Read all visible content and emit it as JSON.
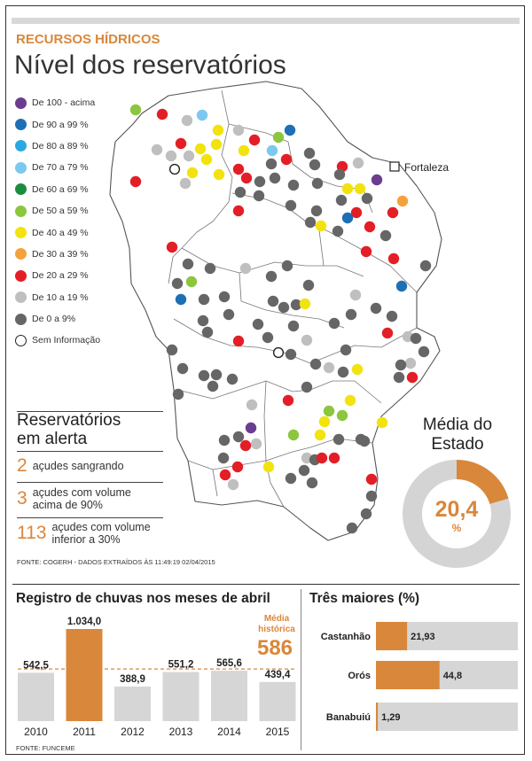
{
  "header": {
    "section": "RECURSOS HÍDRICOS",
    "title": "Nível dos reservatórios"
  },
  "legend": [
    {
      "label": "De 100 - acima",
      "color": "#6a3d8f"
    },
    {
      "label": "De 90 a 99 %",
      "color": "#1f6fb5"
    },
    {
      "label": "De 80 a 89 %",
      "color": "#2aa9e0"
    },
    {
      "label": "De 70 a 79 %",
      "color": "#7cc8ee"
    },
    {
      "label": "De 60 a 69 %",
      "color": "#1e8c3f"
    },
    {
      "label": "De 50 a 59 %",
      "color": "#8cc63f"
    },
    {
      "label": "De 40 a 49 %",
      "color": "#f2e30f"
    },
    {
      "label": "De 30 a 39 %",
      "color": "#f5a23c"
    },
    {
      "label": "De 20 a 29 %",
      "color": "#e41e26"
    },
    {
      "label": "De 10 a 19 %",
      "color": "#bfbfbf"
    },
    {
      "label": "De 0 a 9%",
      "color": "#666666"
    },
    {
      "label": "Sem Informação",
      "color": "#ffffff"
    }
  ],
  "map": {
    "city_label": "Fortaleza"
  },
  "alert": {
    "title_line1": "Reservatórios",
    "title_line2": "em alerta",
    "items": [
      {
        "number": "2",
        "line1": "açudes sangrando",
        "line2": ""
      },
      {
        "number": "3",
        "line1": "açudes com volume",
        "line2": "acima de 90%"
      },
      {
        "number": "113",
        "line1": "açudes com volume",
        "line2": "inferior a 30%"
      }
    ],
    "source": "FONTE: COGERH - DADOS EXTRAÍDOS ÀS 11:49:19 02/04/2015"
  },
  "media_estado": {
    "title_line1": "Média do",
    "title_line2": "Estado",
    "value": 20.4,
    "value_label": "20,4",
    "unit": "%",
    "accent": "#d9873b",
    "track": "#d4d4d4"
  },
  "chart_data": [
    {
      "type": "bar",
      "title": "Registro de chuvas nos meses de abril",
      "categories": [
        "2010",
        "2011",
        "2012",
        "2013",
        "2014",
        "2015"
      ],
      "values": [
        542.5,
        1034.0,
        388.9,
        551.2,
        565.6,
        439.4
      ],
      "value_labels": [
        "542,5",
        "1.034,0",
        "388,9",
        "551,2",
        "565,6",
        "439,4"
      ],
      "highlight_index": 1,
      "reference_line": {
        "label_line1": "Média",
        "label_line2": "histórica",
        "value": 586,
        "value_label": "586"
      },
      "ylim": [
        0,
        1034
      ],
      "colors": {
        "bar": "#d6d6d6",
        "highlight": "#d9873b",
        "reference": "#d9873b"
      },
      "source": "FONTE: FUNCEME"
    },
    {
      "type": "bar",
      "orientation": "horizontal",
      "title": "Três maiores (%)",
      "categories": [
        "Castanhão",
        "Orós",
        "Banabuiú"
      ],
      "values": [
        21.93,
        44.8,
        1.29
      ],
      "value_labels": [
        "21,93",
        "44,8",
        "1,29"
      ],
      "xlim": [
        0,
        100
      ],
      "colors": {
        "track": "#d6d6d6",
        "fill": "#d9873b"
      }
    }
  ]
}
